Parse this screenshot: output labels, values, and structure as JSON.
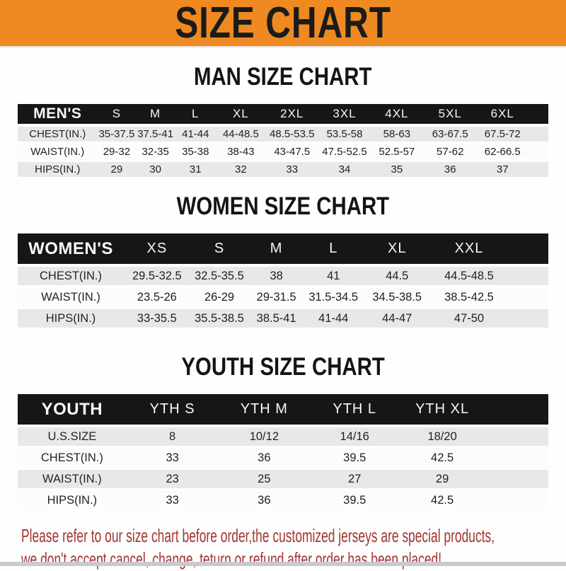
{
  "banner": {
    "title": "SIZE CHART"
  },
  "colors": {
    "accent_orange": "#EE8A21",
    "header_bar_black": "#161616",
    "row_gray": "#E8E8E9",
    "notice_red": "#A23532"
  },
  "chart_data": [
    {
      "type": "table",
      "title": "MAN SIZE CHART",
      "corner_label": "MEN'S",
      "columns": [
        "S",
        "M",
        "L",
        "XL",
        "2XL",
        "3XL",
        "4XL",
        "5XL",
        "6XL"
      ],
      "rows": [
        {
          "label": "CHEST(IN.)",
          "values": [
            "35-37.5",
            "37.5-41",
            "41-44",
            "44-48.5",
            "48.5-53.5",
            "53.5-58",
            "58-63",
            "63-67.5",
            "67.5-72"
          ]
        },
        {
          "label": "WAIST(IN.)",
          "values": [
            "29-32",
            "32-35",
            "35-38",
            "38-43",
            "43-47.5",
            "47.5-52.5",
            "52.5-57",
            "57-62",
            "62-66.5"
          ]
        },
        {
          "label": "HIPS(IN.)",
          "values": [
            "29",
            "30",
            "31",
            "32",
            "33",
            "34",
            "35",
            "36",
            "37"
          ]
        }
      ]
    },
    {
      "type": "table",
      "title": "WOMEN SIZE CHART",
      "corner_label": "WOMEN'S",
      "columns": [
        "XS",
        "S",
        "M",
        "L",
        "XL",
        "XXL"
      ],
      "rows": [
        {
          "label": "CHEST(IN.)",
          "values": [
            "29.5-32.5",
            "32.5-35.5",
            "38",
            "41",
            "44.5",
            "44.5-48.5"
          ]
        },
        {
          "label": "WAIST(IN.)",
          "values": [
            "23.5-26",
            "26-29",
            "29-31.5",
            "31.5-34.5",
            "34.5-38.5",
            "38.5-42.5"
          ]
        },
        {
          "label": "HIPS(IN.)",
          "values": [
            "33-35.5",
            "35.5-38.5",
            "38.5-41",
            "41-44",
            "44-47",
            "47-50"
          ]
        }
      ]
    },
    {
      "type": "table",
      "title": "YOUTH SIZE CHART",
      "corner_label": "YOUTH",
      "columns": [
        "YTH S",
        "YTH M",
        "YTH L",
        "YTH XL"
      ],
      "rows": [
        {
          "label": "U.S.SIZE",
          "values": [
            "8",
            "10/12",
            "14/16",
            "18/20"
          ]
        },
        {
          "label": "CHEST(IN.)",
          "values": [
            "33",
            "36",
            "39.5",
            "42.5"
          ]
        },
        {
          "label": "WAIST(IN.)",
          "values": [
            "23",
            "25",
            "27",
            "29"
          ]
        },
        {
          "label": "HIPS(IN.)",
          "values": [
            "33",
            "36",
            "39.5",
            "42.5"
          ]
        }
      ]
    }
  ],
  "footer": {
    "line1": "Please refer to our size chart before order,the customized jerseys are special products,",
    "line2": "we don't accept cancel, change, teturn or refund after order has been placed!"
  }
}
